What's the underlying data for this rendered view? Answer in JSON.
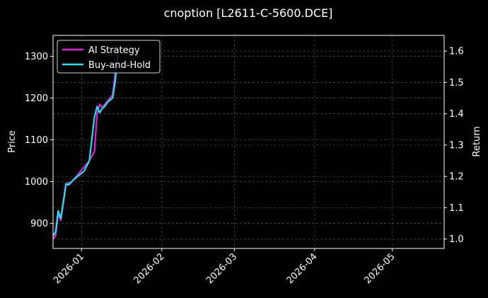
{
  "chart_data": {
    "type": "line",
    "title": "cnoption [L2611-C-5600.DCE]",
    "xlabel": "",
    "ylabel": "Price",
    "y2label": "Return",
    "x_ticks": [
      "2026-01",
      "2026-02",
      "2026-03",
      "2026-04",
      "2026-05"
    ],
    "x_range": [
      "2025-12-21",
      "2026-05-21"
    ],
    "ylim": [
      840,
      1350
    ],
    "y2lim": [
      0.97,
      1.65
    ],
    "y_ticks": [
      900,
      1000,
      1100,
      1200,
      1300
    ],
    "y2_ticks": [
      1.0,
      1.1,
      1.2,
      1.3,
      1.4,
      1.5,
      1.6
    ],
    "grid": true,
    "legend_position": "top-left",
    "series": [
      {
        "name": "AI Strategy",
        "color": "#e020e0",
        "axis": "right",
        "x": [
          "2025-12-21",
          "2025-12-22",
          "2025-12-23",
          "2025-12-24",
          "2025-12-26",
          "2025-12-27",
          "2025-12-28",
          "2025-12-29",
          "2025-12-31",
          "2026-01-02",
          "2026-01-04",
          "2026-01-06",
          "2026-01-07",
          "2026-01-08",
          "2026-01-09",
          "2026-01-10",
          "2026-01-11",
          "2026-01-13",
          "2026-01-14",
          "2026-01-15"
        ],
        "values": [
          1.0,
          1.01,
          1.08,
          1.06,
          1.17,
          1.18,
          1.18,
          1.19,
          1.21,
          1.23,
          1.25,
          1.28,
          1.4,
          1.43,
          1.42,
          1.43,
          1.44,
          1.46,
          1.53,
          1.6
        ]
      },
      {
        "name": "Buy-and-Hold",
        "color": "#22e0f0",
        "axis": "left",
        "x": [
          "2025-12-21",
          "2025-12-22",
          "2025-12-23",
          "2025-12-24",
          "2025-12-26",
          "2025-12-27",
          "2025-12-28",
          "2025-12-29",
          "2025-12-31",
          "2026-01-02",
          "2026-01-04",
          "2026-01-06",
          "2026-01-07",
          "2026-01-08",
          "2026-01-09",
          "2026-01-10",
          "2026-01-11",
          "2026-01-13",
          "2026-01-14",
          "2026-01-15"
        ],
        "values": [
          870,
          880,
          930,
          912,
          995,
          992,
          998,
          1005,
          1015,
          1025,
          1050,
          1155,
          1180,
          1165,
          1175,
          1180,
          1190,
          1200,
          1240,
          1305
        ]
      }
    ]
  }
}
